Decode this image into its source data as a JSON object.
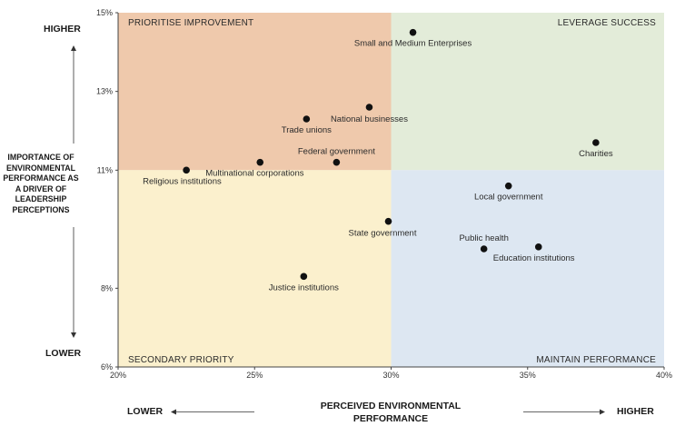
{
  "chart_data": {
    "type": "scatter",
    "title": "",
    "xlabel": "PERCEIVED ENVIRONMENTAL PERFORMANCE",
    "ylabel": "IMPORTANCE OF ENVIRONMENTAL PERFORMANCE AS A DRIVER OF LEADERSHIP PERCEPTIONS",
    "xlim": [
      20,
      40
    ],
    "ylim": [
      6,
      15
    ],
    "x_ticks": [
      "20%",
      "25%",
      "30%",
      "35%",
      "40%"
    ],
    "y_ticks": [
      "6%",
      "8%",
      "11%",
      "13%",
      "15%"
    ],
    "x_end_labels": {
      "low": "LOWER",
      "high": "HIGHER"
    },
    "y_end_labels": {
      "low": "LOWER",
      "high": "HIGHER"
    },
    "divider": {
      "x": 30,
      "y": 11
    },
    "quadrants": [
      {
        "label": "PRIORITISE IMPROVEMENT",
        "color": "#efc9ac"
      },
      {
        "label": "LEVERAGE SUCCESS",
        "color": "#e3ecd9"
      },
      {
        "label": "SECONDARY PRIORITY",
        "color": "#fbf0cd"
      },
      {
        "label": "MAINTAIN PERFORMANCE",
        "color": "#dde7f2"
      }
    ],
    "points": [
      {
        "label": "Small and Medium Enterprises",
        "x": 30.8,
        "y": 14.5
      },
      {
        "label": "National businesses",
        "x": 29.2,
        "y": 12.6
      },
      {
        "label": "Trade unions",
        "x": 26.9,
        "y": 12.3
      },
      {
        "label": "Federal government",
        "x": 28.0,
        "y": 11.2
      },
      {
        "label": "Multinational corporations",
        "x": 25.2,
        "y": 11.2
      },
      {
        "label": "Religious institutions",
        "x": 22.5,
        "y": 11.0
      },
      {
        "label": "Charities",
        "x": 37.5,
        "y": 11.7
      },
      {
        "label": "Local government",
        "x": 34.3,
        "y": 10.6
      },
      {
        "label": "State government",
        "x": 29.9,
        "y": 9.7
      },
      {
        "label": "Public health",
        "x": 33.4,
        "y": 9.0
      },
      {
        "label": "Education institutions",
        "x": 35.4,
        "y": 9.05
      },
      {
        "label": "Justice institutions",
        "x": 26.8,
        "y": 8.3
      }
    ]
  }
}
